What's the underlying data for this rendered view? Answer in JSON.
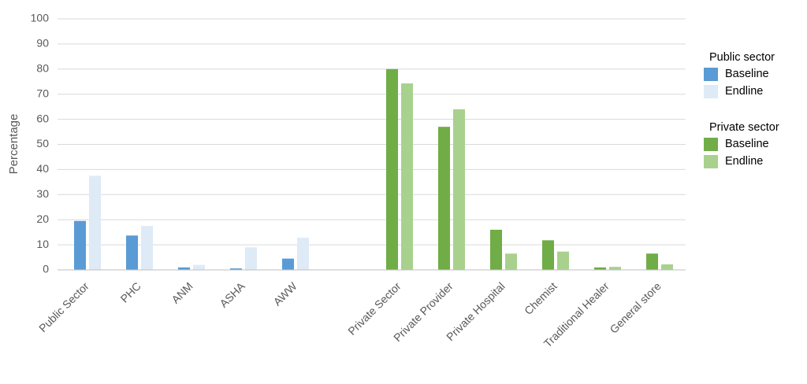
{
  "chart_data": {
    "type": "bar",
    "y_label": "Percentage",
    "categories": [
      "Public Sector",
      "PHC",
      "ANM",
      "ASHA",
      "AWW",
      null,
      "Private Sector",
      "Private Provider",
      "Private Hospital",
      "Chemist",
      "Traditional Healer",
      "General store"
    ],
    "series_groups": [
      {
        "name": "Public sector",
        "series": [
          {
            "name": "Baseline",
            "color": "#5b9bd5",
            "values": [
              19.5,
              13.7,
              1,
              0.6,
              4.5,
              null,
              null,
              null,
              null,
              null,
              null,
              null
            ]
          },
          {
            "name": "Endline",
            "color": "#deebf7",
            "values": [
              37.5,
              17.5,
              2,
              9,
              12.8,
              null,
              null,
              null,
              null,
              null,
              null,
              null
            ]
          }
        ]
      },
      {
        "name": "Private sector",
        "series": [
          {
            "name": "Baseline",
            "color": "#70ad47",
            "values": [
              null,
              null,
              null,
              null,
              null,
              null,
              80,
              57,
              16,
              11.8,
              1,
              6.5
            ]
          },
          {
            "name": "Endline",
            "color": "#a9d18e",
            "values": [
              null,
              null,
              null,
              null,
              null,
              null,
              74.3,
              64,
              6.5,
              7.3,
              1.2,
              2.2
            ]
          }
        ]
      }
    ],
    "ylim": [
      0,
      100
    ],
    "yticks": [
      0,
      10,
      20,
      30,
      40,
      50,
      60,
      70,
      80,
      90,
      100
    ],
    "grid": true
  }
}
